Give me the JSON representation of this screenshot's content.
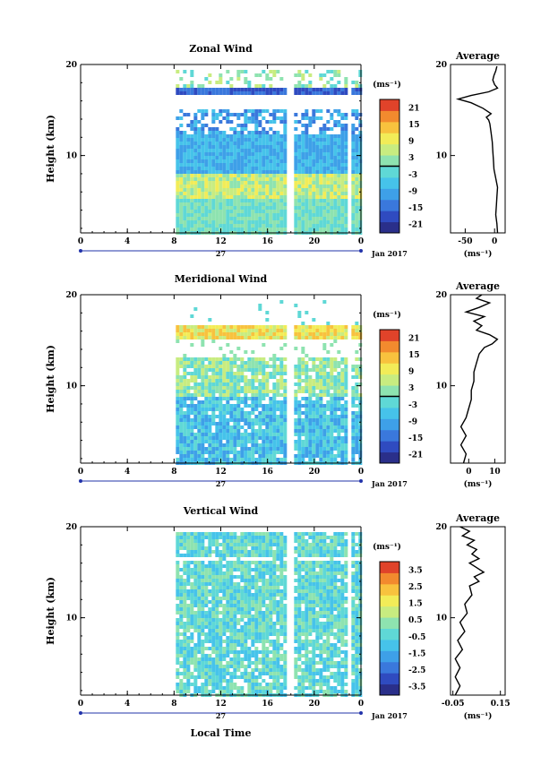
{
  "xlabel_bottom": "Local Time",
  "date_label": "Jan 2017",
  "day_label": "27",
  "panels": [
    {
      "title": "Zonal Wind",
      "ylabel": "Height (km)",
      "cbar_unit": "(ms⁻¹)",
      "cbar_ticks": [
        "21",
        "15",
        "9",
        "3",
        "-3",
        "-9",
        "-15",
        "-21"
      ],
      "avg_title": "Average",
      "avg_unit": "(ms⁻¹)",
      "avg_xticks": [
        "-50",
        "0"
      ]
    },
    {
      "title": "Meridional Wind",
      "ylabel": "Height (km)",
      "cbar_unit": "(ms⁻¹)",
      "cbar_ticks": [
        "21",
        "15",
        "9",
        "3",
        "-3",
        "-9",
        "-15",
        "-21"
      ],
      "avg_title": "Average",
      "avg_unit": "(ms⁻¹)",
      "avg_xticks": [
        "0",
        "10"
      ]
    },
    {
      "title": "Vertical Wind",
      "ylabel": "Height (km)",
      "cbar_unit": "(ms⁻¹)",
      "cbar_ticks": [
        "3.5",
        "2.5",
        "1.5",
        "0.5",
        "-0.5",
        "-1.5",
        "-2.5",
        "-3.5"
      ],
      "avg_title": "Average",
      "avg_unit": "(ms⁻¹)",
      "avg_xticks": [
        "-0.05",
        "0.15"
      ]
    }
  ],
  "chart_data": [
    {
      "type": "heatmap",
      "title": "Zonal Wind",
      "xlabel": "",
      "ylabel": "Height (km)",
      "x_ticks": [
        "0",
        "4",
        "8",
        "12",
        "16",
        "20",
        "0"
      ],
      "y_ticks": [
        "10",
        "20"
      ],
      "xlim": [
        0,
        24
      ],
      "ylim": [
        1.5,
        20
      ],
      "data_x_range": [
        8,
        24
      ],
      "colorbar": {
        "unit": "(ms⁻¹)",
        "ticks": [
          21,
          15,
          9,
          3,
          -3,
          -9,
          -15,
          -21
        ],
        "range": [
          -24,
          24
        ]
      },
      "profile": {
        "title": "Average",
        "xlabel": "(ms⁻¹)",
        "x_ticks": [
          "-50",
          "0"
        ],
        "xlim": [
          -75,
          18
        ],
        "y_ticks": [
          "10",
          "20"
        ],
        "points": [
          [
            5,
            1.5
          ],
          [
            4,
            2.5
          ],
          [
            2,
            3.5
          ],
          [
            3,
            4.5
          ],
          [
            4,
            5.5
          ],
          [
            5,
            6.5
          ],
          [
            2,
            7.5
          ],
          [
            -1,
            8.5
          ],
          [
            -2,
            9.5
          ],
          [
            -3,
            10.5
          ],
          [
            -4,
            11.5
          ],
          [
            -6,
            12.5
          ],
          [
            -8,
            13.5
          ],
          [
            -10,
            13.9
          ],
          [
            -14,
            14.2
          ],
          [
            -6,
            14.6
          ],
          [
            -20,
            15.2
          ],
          [
            -40,
            15.8
          ],
          [
            -62,
            16.2
          ],
          [
            -40,
            16.6
          ],
          [
            -10,
            17.0
          ],
          [
            5,
            17.4
          ],
          [
            0,
            17.8
          ],
          [
            -3,
            18.3
          ],
          [
            -1,
            18.8
          ],
          [
            2,
            19.3
          ],
          [
            4,
            19.8
          ]
        ]
      }
    },
    {
      "type": "heatmap",
      "title": "Meridional Wind",
      "xlabel": "",
      "ylabel": "Height (km)",
      "x_ticks": [
        "0",
        "4",
        "8",
        "12",
        "16",
        "20",
        "0"
      ],
      "y_ticks": [
        "10",
        "20"
      ],
      "xlim": [
        0,
        24
      ],
      "ylim": [
        1.5,
        20
      ],
      "data_x_range": [
        8,
        24
      ],
      "colorbar": {
        "unit": "(ms⁻¹)",
        "ticks": [
          21,
          15,
          9,
          3,
          -3,
          -9,
          -15,
          -21
        ],
        "range": [
          -24,
          24
        ]
      },
      "profile": {
        "title": "Average",
        "xlabel": "(ms⁻¹)",
        "x_ticks": [
          "0",
          "10"
        ],
        "xlim": [
          -7,
          14
        ],
        "y_ticks": [
          "10",
          "20"
        ],
        "points": [
          [
            -2,
            1.5
          ],
          [
            -1,
            2.5
          ],
          [
            -3,
            3.5
          ],
          [
            -1,
            4.5
          ],
          [
            -3,
            5.5
          ],
          [
            -1,
            6.5
          ],
          [
            0,
            7.5
          ],
          [
            1,
            8.5
          ],
          [
            1,
            9.5
          ],
          [
            2,
            10.5
          ],
          [
            2,
            11.5
          ],
          [
            3,
            12.5
          ],
          [
            4,
            13.5
          ],
          [
            6,
            14.2
          ],
          [
            9,
            14.6
          ],
          [
            11,
            15.1
          ],
          [
            8,
            15.6
          ],
          [
            3,
            16.1
          ],
          [
            5,
            16.6
          ],
          [
            2,
            17.1
          ],
          [
            6,
            17.6
          ],
          [
            -1,
            18.1
          ],
          [
            4,
            18.6
          ],
          [
            8,
            19.1
          ],
          [
            3,
            19.6
          ],
          [
            5,
            20
          ]
        ]
      }
    },
    {
      "type": "heatmap",
      "title": "Vertical Wind",
      "xlabel": "Local Time",
      "ylabel": "Height (km)",
      "x_ticks": [
        "0",
        "4",
        "8",
        "12",
        "16",
        "20",
        "0"
      ],
      "y_ticks": [
        "10",
        "20"
      ],
      "xlim": [
        0,
        24
      ],
      "ylim": [
        1.5,
        20
      ],
      "data_x_range": [
        8,
        24
      ],
      "colorbar": {
        "unit": "(ms⁻¹)",
        "ticks": [
          3.5,
          2.5,
          1.5,
          0.5,
          -0.5,
          -1.5,
          -2.5,
          -3.5
        ],
        "range": [
          -4,
          4
        ]
      },
      "profile": {
        "title": "Average",
        "xlabel": "(ms⁻¹)",
        "x_ticks": [
          "-0.05",
          "0.15"
        ],
        "xlim": [
          -0.06,
          0.17
        ],
        "y_ticks": [
          "10",
          "20"
        ],
        "points": [
          [
            -0.04,
            1.5
          ],
          [
            -0.02,
            2.5
          ],
          [
            -0.04,
            3.5
          ],
          [
            -0.02,
            4.5
          ],
          [
            -0.04,
            5.5
          ],
          [
            -0.01,
            6.5
          ],
          [
            -0.03,
            7.5
          ],
          [
            0.0,
            8.5
          ],
          [
            -0.02,
            9.5
          ],
          [
            0.01,
            10.5
          ],
          [
            0.0,
            11.5
          ],
          [
            0.03,
            12.5
          ],
          [
            0.02,
            13.5
          ],
          [
            0.06,
            14.0
          ],
          [
            0.04,
            14.5
          ],
          [
            0.08,
            15.0
          ],
          [
            0.05,
            15.5
          ],
          [
            0.02,
            16.0
          ],
          [
            0.06,
            16.5
          ],
          [
            0.03,
            17.0
          ],
          [
            0.05,
            17.5
          ],
          [
            0.01,
            18.0
          ],
          [
            0.04,
            18.5
          ],
          [
            -0.01,
            19.0
          ],
          [
            0.02,
            19.5
          ],
          [
            -0.02,
            20
          ]
        ]
      }
    }
  ],
  "colors": {
    "zonal_scale": [
      "#2a2f8a",
      "#2f4bc0",
      "#3a78dc",
      "#3ea0e8",
      "#46c3ea",
      "#5fd8d6",
      "#8ee3b0",
      "#c8ec80",
      "#f2ec58",
      "#f8c23e",
      "#f28a2e",
      "#e0432a"
    ],
    "vertical_scale": [
      "#2a2f8a",
      "#2f4bc0",
      "#3a78dc",
      "#3ea0e8",
      "#46c3ea",
      "#5fd8d6",
      "#8ee3b0",
      "#c8ec80",
      "#f2ec58",
      "#f8c23e",
      "#f28a2e",
      "#e0432a"
    ]
  }
}
